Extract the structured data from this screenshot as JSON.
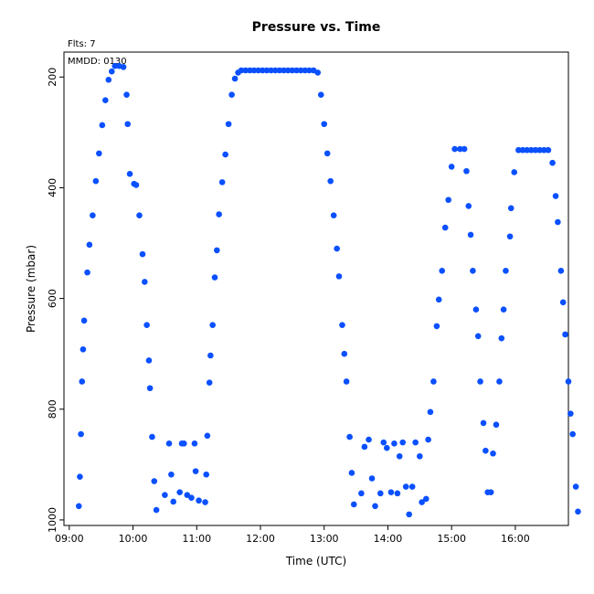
{
  "chart_data": {
    "type": "scatter",
    "title": "Pressure  vs. Time",
    "flights_label": "Flts: 7",
    "date_label": "MMDD: 0130",
    "xlabel": "Time (UTC)",
    "ylabel": "Pressure (mbar)",
    "xlim": [
      "08:55",
      "16:50"
    ],
    "ylim": [
      1010,
      155
    ],
    "y_inverted": true,
    "x_ticks": [
      "09:00",
      "10:00",
      "11:00",
      "12:00",
      "13:00",
      "14:00",
      "15:00",
      "16:00"
    ],
    "y_ticks": [
      200,
      400,
      600,
      800,
      1000
    ],
    "grid": false,
    "marker_color": "#0a50ff",
    "points": [
      [
        "09:09",
        975
      ],
      [
        "09:10",
        922
      ],
      [
        "09:11",
        845
      ],
      [
        "09:12",
        750
      ],
      [
        "09:13",
        692
      ],
      [
        "09:14",
        640
      ],
      [
        "09:17",
        553
      ],
      [
        "09:19",
        503
      ],
      [
        "09:22",
        450
      ],
      [
        "09:25",
        388
      ],
      [
        "09:28",
        338
      ],
      [
        "09:31",
        287
      ],
      [
        "09:34",
        242
      ],
      [
        "09:37",
        205
      ],
      [
        "09:40",
        190
      ],
      [
        "09:43",
        180
      ],
      [
        "09:47",
        180
      ],
      [
        "09:51",
        182
      ],
      [
        "09:54",
        232
      ],
      [
        "09:55",
        285
      ],
      [
        "09:57",
        375
      ],
      [
        "10:01",
        393
      ],
      [
        "10:03",
        395
      ],
      [
        "10:06",
        450
      ],
      [
        "10:09",
        520
      ],
      [
        "10:11",
        570
      ],
      [
        "10:13",
        648
      ],
      [
        "10:15",
        712
      ],
      [
        "10:16",
        762
      ],
      [
        "10:18",
        850
      ],
      [
        "10:20",
        930
      ],
      [
        "10:22",
        982
      ],
      [
        "10:30",
        955
      ],
      [
        "10:34",
        862
      ],
      [
        "10:36",
        918
      ],
      [
        "10:38",
        967
      ],
      [
        "10:44",
        950
      ],
      [
        "10:46",
        862
      ],
      [
        "10:48",
        862
      ],
      [
        "10:51",
        955
      ],
      [
        "10:55",
        960
      ],
      [
        "10:58",
        862
      ],
      [
        "10:59",
        912
      ],
      [
        "11:02",
        965
      ],
      [
        "11:08",
        968
      ],
      [
        "11:09",
        918
      ],
      [
        "11:10",
        848
      ],
      [
        "11:12",
        752
      ],
      [
        "11:13",
        703
      ],
      [
        "11:15",
        648
      ],
      [
        "11:17",
        562
      ],
      [
        "11:19",
        513
      ],
      [
        "11:21",
        448
      ],
      [
        "11:24",
        390
      ],
      [
        "11:27",
        340
      ],
      [
        "11:30",
        285
      ],
      [
        "11:33",
        232
      ],
      [
        "11:36",
        203
      ],
      [
        "11:39",
        192
      ],
      [
        "11:42",
        188
      ],
      [
        "11:46",
        188
      ],
      [
        "11:50",
        188
      ],
      [
        "11:54",
        188
      ],
      [
        "11:58",
        188
      ],
      [
        "12:02",
        188
      ],
      [
        "12:06",
        188
      ],
      [
        "12:10",
        188
      ],
      [
        "12:14",
        188
      ],
      [
        "12:18",
        188
      ],
      [
        "12:22",
        188
      ],
      [
        "12:26",
        188
      ],
      [
        "12:30",
        188
      ],
      [
        "12:34",
        188
      ],
      [
        "12:38",
        188
      ],
      [
        "12:42",
        188
      ],
      [
        "12:46",
        188
      ],
      [
        "12:50",
        188
      ],
      [
        "12:54",
        192
      ],
      [
        "12:57",
        232
      ],
      [
        "13:00",
        285
      ],
      [
        "13:03",
        338
      ],
      [
        "13:06",
        388
      ],
      [
        "13:09",
        450
      ],
      [
        "13:12",
        510
      ],
      [
        "13:14",
        560
      ],
      [
        "13:17",
        648
      ],
      [
        "13:19",
        700
      ],
      [
        "13:21",
        750
      ],
      [
        "13:24",
        850
      ],
      [
        "13:26",
        915
      ],
      [
        "13:28",
        972
      ],
      [
        "13:35",
        952
      ],
      [
        "13:38",
        868
      ],
      [
        "13:42",
        855
      ],
      [
        "13:45",
        925
      ],
      [
        "13:48",
        975
      ],
      [
        "13:53",
        952
      ],
      [
        "13:56",
        860
      ],
      [
        "13:59",
        870
      ],
      [
        "14:03",
        950
      ],
      [
        "14:06",
        862
      ],
      [
        "14:09",
        952
      ],
      [
        "14:11",
        885
      ],
      [
        "14:14",
        860
      ],
      [
        "14:17",
        940
      ],
      [
        "14:20",
        990
      ],
      [
        "14:23",
        940
      ],
      [
        "14:26",
        860
      ],
      [
        "14:30",
        885
      ],
      [
        "14:32",
        968
      ],
      [
        "14:36",
        962
      ],
      [
        "14:38",
        855
      ],
      [
        "14:40",
        805
      ],
      [
        "14:43",
        750
      ],
      [
        "14:46",
        650
      ],
      [
        "14:48",
        602
      ],
      [
        "14:51",
        550
      ],
      [
        "14:54",
        472
      ],
      [
        "14:57",
        422
      ],
      [
        "15:00",
        362
      ],
      [
        "15:03",
        330
      ],
      [
        "15:08",
        330
      ],
      [
        "15:12",
        330
      ],
      [
        "15:14",
        370
      ],
      [
        "15:16",
        433
      ],
      [
        "15:18",
        485
      ],
      [
        "15:20",
        550
      ],
      [
        "15:23",
        620
      ],
      [
        "15:25",
        668
      ],
      [
        "15:27",
        750
      ],
      [
        "15:30",
        825
      ],
      [
        "15:32",
        875
      ],
      [
        "15:34",
        950
      ],
      [
        "15:37",
        950
      ],
      [
        "15:39",
        880
      ],
      [
        "15:42",
        828
      ],
      [
        "15:45",
        750
      ],
      [
        "15:47",
        672
      ],
      [
        "15:49",
        620
      ],
      [
        "15:51",
        550
      ],
      [
        "15:55",
        488
      ],
      [
        "15:56",
        437
      ],
      [
        "15:59",
        372
      ],
      [
        "16:03",
        332
      ],
      [
        "16:07",
        332
      ],
      [
        "16:11",
        332
      ],
      [
        "16:15",
        332
      ],
      [
        "16:19",
        332
      ],
      [
        "16:23",
        332
      ],
      [
        "16:27",
        332
      ],
      [
        "16:31",
        332
      ],
      [
        "16:35",
        355
      ],
      [
        "16:38",
        415
      ],
      [
        "16:40",
        462
      ],
      [
        "16:43",
        550
      ],
      [
        "16:45",
        607
      ],
      [
        "16:47",
        665
      ],
      [
        "16:50",
        750
      ],
      [
        "16:52",
        808
      ],
      [
        "16:54",
        845
      ],
      [
        "16:57",
        940
      ],
      [
        "16:59",
        985
      ]
    ]
  }
}
